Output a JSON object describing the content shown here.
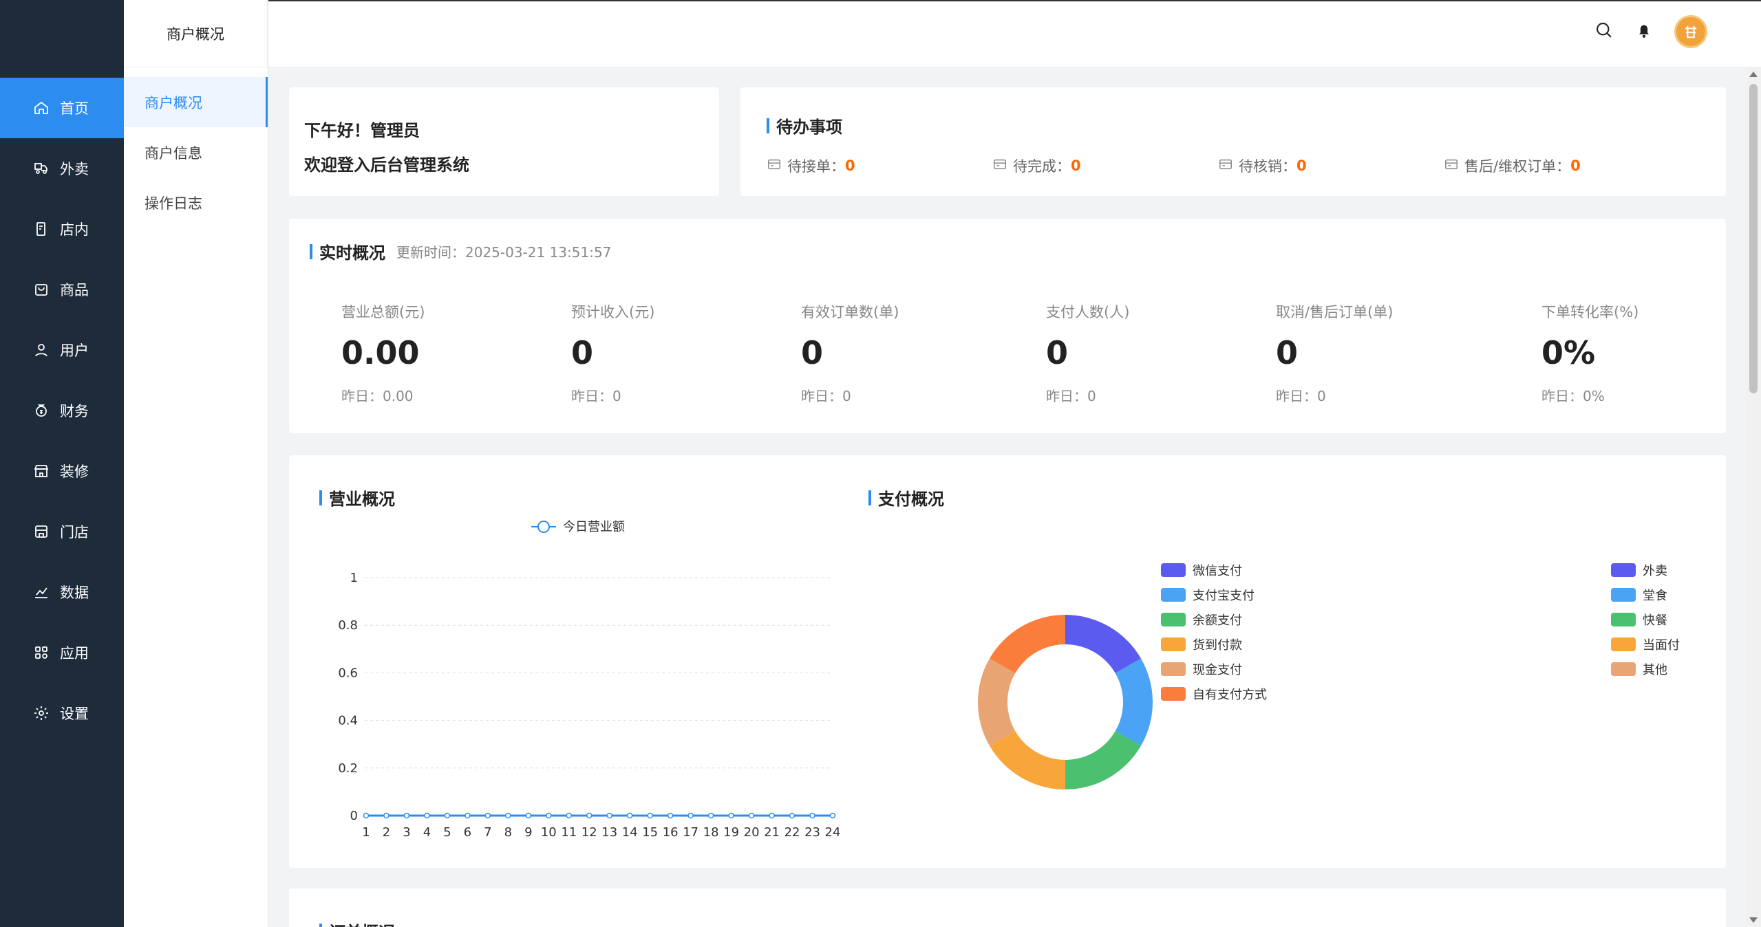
{
  "sidebar": {
    "items": [
      {
        "label": "首页",
        "icon": "home-icon",
        "active": true
      },
      {
        "label": "外卖",
        "icon": "delivery-icon"
      },
      {
        "label": "店内",
        "icon": "dine-in-icon"
      },
      {
        "label": "商品",
        "icon": "bag-icon"
      },
      {
        "label": "用户",
        "icon": "user-icon"
      },
      {
        "label": "财务",
        "icon": "money-icon"
      },
      {
        "label": "装修",
        "icon": "shop-decor-icon"
      },
      {
        "label": "门店",
        "icon": "store-icon"
      },
      {
        "label": "数据",
        "icon": "chart-icon"
      },
      {
        "label": "应用",
        "icon": "apps-icon"
      },
      {
        "label": "设置",
        "icon": "gear-icon"
      }
    ]
  },
  "submenu": {
    "header": "商户概况",
    "items": [
      "商户概况",
      "商户信息",
      "操作日志"
    ]
  },
  "greeting": {
    "line1": "下午好！管理员",
    "line2": "欢迎登入后台管理系统"
  },
  "todo": {
    "title": "待办事项",
    "items": [
      {
        "label": "待接单：",
        "value": "0"
      },
      {
        "label": "待完成：",
        "value": "0"
      },
      {
        "label": "待核销：",
        "value": "0"
      },
      {
        "label": "售后/维权订单：",
        "value": "0"
      }
    ]
  },
  "realtime": {
    "title": "实时概况",
    "update_time": "更新时间：2025-03-21 13:51:57",
    "stats": [
      {
        "label": "营业总额(元)",
        "value": "0.00",
        "yesterday": "昨日：0.00"
      },
      {
        "label": "预计收入(元)",
        "value": "0",
        "yesterday": "昨日：0"
      },
      {
        "label": "有效订单数(单)",
        "value": "0",
        "yesterday": "昨日：0"
      },
      {
        "label": "支付人数(人)",
        "value": "0",
        "yesterday": "昨日：0"
      },
      {
        "label": "取消/售后订单(单)",
        "value": "0",
        "yesterday": "昨日：0"
      },
      {
        "label": "下单转化率(%)",
        "value": "0%",
        "yesterday": "昨日：0%"
      }
    ]
  },
  "business": {
    "title": "营业概况"
  },
  "payment": {
    "title": "支付概况"
  },
  "orders": {
    "title": "订单概况"
  },
  "colors": {
    "accent": "#2d8cf0",
    "sidebar": "#1d2b3a",
    "warning": "#ff6600"
  },
  "chart_data": [
    {
      "type": "line",
      "legend": [
        "今日营业额"
      ],
      "x": [
        "1",
        "2",
        "3",
        "4",
        "5",
        "6",
        "7",
        "8",
        "9",
        "10",
        "11",
        "12",
        "13",
        "14",
        "15",
        "16",
        "17",
        "18",
        "19",
        "20",
        "21",
        "22",
        "23",
        "24"
      ],
      "series": [
        {
          "name": "今日营业额",
          "values": [
            0,
            0,
            0,
            0,
            0,
            0,
            0,
            0,
            0,
            0,
            0,
            0,
            0,
            0,
            0,
            0,
            0,
            0,
            0,
            0,
            0,
            0,
            0,
            0
          ]
        }
      ],
      "ylim": [
        0,
        1
      ],
      "yticks": [
        "0",
        "0.2",
        "0.4",
        "0.6",
        "0.8",
        "1"
      ],
      "grid": true,
      "color": "#2d8cf0"
    },
    {
      "type": "pie",
      "legend_position": "right",
      "categories": [
        "微信支付",
        "支付宝支付",
        "余额支付",
        "货到付款",
        "现金支付",
        "自有支付方式"
      ],
      "values": [
        1,
        1,
        1,
        1,
        1,
        1
      ],
      "colors": [
        "#5b5bef",
        "#4aa3f5",
        "#4bc06f",
        "#f8a53a",
        "#e9a473",
        "#fb7d3c"
      ]
    },
    {
      "type": "pie",
      "legend_position": "right",
      "categories": [
        "外卖",
        "堂食",
        "快餐",
        "当面付",
        "其他"
      ],
      "values": [
        1,
        1,
        1,
        1,
        1
      ],
      "colors": [
        "#5b5bef",
        "#4aa3f5",
        "#4bc06f",
        "#f8a53a",
        "#e9a473"
      ]
    }
  ]
}
